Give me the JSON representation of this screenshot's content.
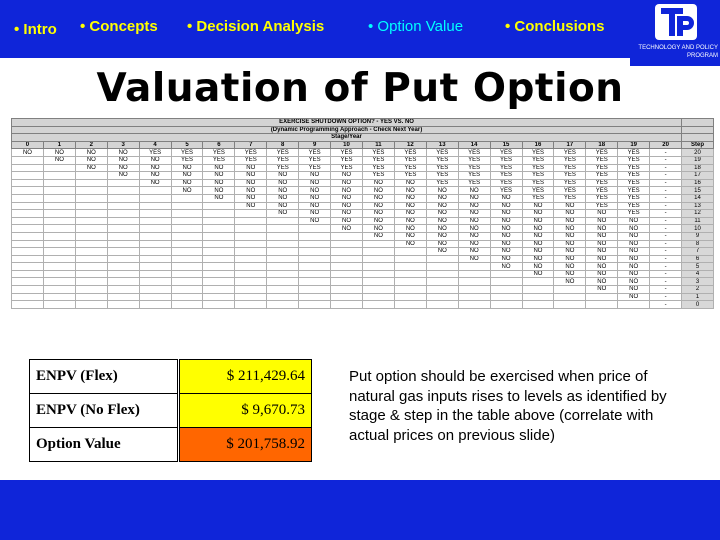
{
  "nav": {
    "items": [
      "• Intro",
      "• Concepts",
      "• Decision Analysis",
      "• Option Value",
      "• Conclusions"
    ],
    "active_index": 3
  },
  "logo": {
    "line1": "TECHNOLOGY AND POLICY",
    "line2": "PROGRAM"
  },
  "title": "Valuation of Put Option",
  "table": {
    "title1": "EXERCISE SHUTDOWN OPTION? - YES VS. NO",
    "title2": "(Dynamic Programming Approach - Check Next Year)",
    "title3": "Stage/Year",
    "step_header": "Step",
    "stages": [
      "0",
      "1",
      "2",
      "3",
      "4",
      "5",
      "6",
      "7",
      "8",
      "9",
      "10",
      "11",
      "12",
      "13",
      "14",
      "15",
      "16",
      "17",
      "18",
      "19",
      "20"
    ],
    "rows": [
      {
        "step": "20",
        "cells": [
          "NO",
          "NO",
          "NO",
          "NO",
          "YES",
          "YES",
          "YES",
          "YES",
          "YES",
          "YES",
          "YES",
          "YES",
          "YES",
          "YES",
          "YES",
          "YES",
          "YES",
          "YES",
          "YES",
          "YES",
          "-"
        ]
      },
      {
        "step": "19",
        "cells": [
          "",
          "NO",
          "NO",
          "NO",
          "NO",
          "YES",
          "YES",
          "YES",
          "YES",
          "YES",
          "YES",
          "YES",
          "YES",
          "YES",
          "YES",
          "YES",
          "YES",
          "YES",
          "YES",
          "YES",
          "-"
        ]
      },
      {
        "step": "18",
        "cells": [
          "",
          "",
          "NO",
          "NO",
          "NO",
          "NO",
          "NO",
          "NO",
          "YES",
          "YES",
          "YES",
          "YES",
          "YES",
          "YES",
          "YES",
          "YES",
          "YES",
          "YES",
          "YES",
          "YES",
          "-"
        ]
      },
      {
        "step": "17",
        "cells": [
          "",
          "",
          "",
          "NO",
          "NO",
          "NO",
          "NO",
          "NO",
          "NO",
          "NO",
          "NO",
          "YES",
          "YES",
          "YES",
          "YES",
          "YES",
          "YES",
          "YES",
          "YES",
          "YES",
          "-"
        ]
      },
      {
        "step": "16",
        "cells": [
          "",
          "",
          "",
          "",
          "NO",
          "NO",
          "NO",
          "NO",
          "NO",
          "NO",
          "NO",
          "NO",
          "NO",
          "YES",
          "YES",
          "YES",
          "YES",
          "YES",
          "YES",
          "YES",
          "-"
        ]
      },
      {
        "step": "15",
        "cells": [
          "",
          "",
          "",
          "",
          "",
          "NO",
          "NO",
          "NO",
          "NO",
          "NO",
          "NO",
          "NO",
          "NO",
          "NO",
          "NO",
          "YES",
          "YES",
          "YES",
          "YES",
          "YES",
          "-"
        ]
      },
      {
        "step": "14",
        "cells": [
          "",
          "",
          "",
          "",
          "",
          "",
          "NO",
          "NO",
          "NO",
          "NO",
          "NO",
          "NO",
          "NO",
          "NO",
          "NO",
          "NO",
          "YES",
          "YES",
          "YES",
          "YES",
          "-"
        ]
      },
      {
        "step": "13",
        "cells": [
          "",
          "",
          "",
          "",
          "",
          "",
          "",
          "NO",
          "NO",
          "NO",
          "NO",
          "NO",
          "NO",
          "NO",
          "NO",
          "NO",
          "NO",
          "NO",
          "YES",
          "YES",
          "-"
        ]
      },
      {
        "step": "12",
        "cells": [
          "",
          "",
          "",
          "",
          "",
          "",
          "",
          "",
          "NO",
          "NO",
          "NO",
          "NO",
          "NO",
          "NO",
          "NO",
          "NO",
          "NO",
          "NO",
          "NO",
          "YES",
          "-"
        ]
      },
      {
        "step": "11",
        "cells": [
          "",
          "",
          "",
          "",
          "",
          "",
          "",
          "",
          "",
          "NO",
          "NO",
          "NO",
          "NO",
          "NO",
          "NO",
          "NO",
          "NO",
          "NO",
          "NO",
          "NO",
          "-"
        ]
      },
      {
        "step": "10",
        "cells": [
          "",
          "",
          "",
          "",
          "",
          "",
          "",
          "",
          "",
          "",
          "NO",
          "NO",
          "NO",
          "NO",
          "NO",
          "NO",
          "NO",
          "NO",
          "NO",
          "NO",
          "-"
        ]
      },
      {
        "step": "9",
        "cells": [
          "",
          "",
          "",
          "",
          "",
          "",
          "",
          "",
          "",
          "",
          "",
          "NO",
          "NO",
          "NO",
          "NO",
          "NO",
          "NO",
          "NO",
          "NO",
          "NO",
          "-"
        ]
      },
      {
        "step": "8",
        "cells": [
          "",
          "",
          "",
          "",
          "",
          "",
          "",
          "",
          "",
          "",
          "",
          "",
          "NO",
          "NO",
          "NO",
          "NO",
          "NO",
          "NO",
          "NO",
          "NO",
          "-"
        ]
      },
      {
        "step": "7",
        "cells": [
          "",
          "",
          "",
          "",
          "",
          "",
          "",
          "",
          "",
          "",
          "",
          "",
          "",
          "NO",
          "NO",
          "NO",
          "NO",
          "NO",
          "NO",
          "NO",
          "-"
        ]
      },
      {
        "step": "6",
        "cells": [
          "",
          "",
          "",
          "",
          "",
          "",
          "",
          "",
          "",
          "",
          "",
          "",
          "",
          "",
          "NO",
          "NO",
          "NO",
          "NO",
          "NO",
          "NO",
          "-"
        ]
      },
      {
        "step": "5",
        "cells": [
          "",
          "",
          "",
          "",
          "",
          "",
          "",
          "",
          "",
          "",
          "",
          "",
          "",
          "",
          "",
          "NO",
          "NO",
          "NO",
          "NO",
          "NO",
          "-"
        ]
      },
      {
        "step": "4",
        "cells": [
          "",
          "",
          "",
          "",
          "",
          "",
          "",
          "",
          "",
          "",
          "",
          "",
          "",
          "",
          "",
          "",
          "NO",
          "NO",
          "NO",
          "NO",
          "-"
        ]
      },
      {
        "step": "3",
        "cells": [
          "",
          "",
          "",
          "",
          "",
          "",
          "",
          "",
          "",
          "",
          "",
          "",
          "",
          "",
          "",
          "",
          "",
          "NO",
          "NO",
          "NO",
          "-"
        ]
      },
      {
        "step": "2",
        "cells": [
          "",
          "",
          "",
          "",
          "",
          "",
          "",
          "",
          "",
          "",
          "",
          "",
          "",
          "",
          "",
          "",
          "",
          "",
          "NO",
          "NO",
          "-"
        ]
      },
      {
        "step": "1",
        "cells": [
          "",
          "",
          "",
          "",
          "",
          "",
          "",
          "",
          "",
          "",
          "",
          "",
          "",
          "",
          "",
          "",
          "",
          "",
          "",
          "NO",
          "-"
        ]
      },
      {
        "step": "0",
        "cells": [
          "",
          "",
          "",
          "",
          "",
          "",
          "",
          "",
          "",
          "",
          "",
          "",
          "",
          "",
          "",
          "",
          "",
          "",
          "",
          "",
          "-"
        ]
      }
    ]
  },
  "values": [
    {
      "label": "ENPV (Flex)",
      "value": "$ 211,429.64",
      "color": "#ffff00"
    },
    {
      "label": "ENPV (No Flex)",
      "value": "$ 9,670.73",
      "color": "#ffff00"
    },
    {
      "label": "Option Value",
      "value": "$ 201,758.92",
      "color": "#ff6600"
    }
  ],
  "description": "Put option should be exercised when price of natural gas inputs rises to levels as identified by stage & step in the table above (correlate with actual prices on previous slide)",
  "colors": {
    "bar_blue": "#0f25d9",
    "nav_yellow": "#ffff00",
    "nav_active": "#00ffff"
  }
}
